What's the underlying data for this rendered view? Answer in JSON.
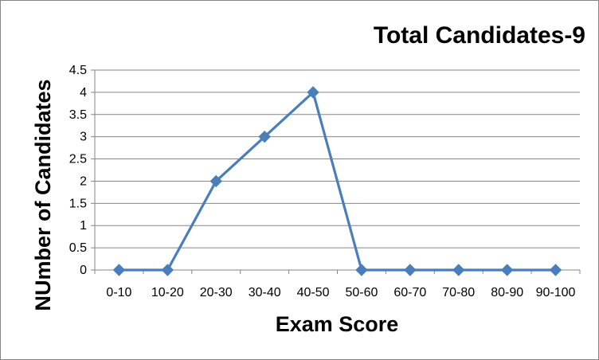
{
  "chart_data": {
    "type": "line",
    "title": "Total Candidates-9",
    "xlabel": "Exam Score",
    "ylabel": "NUmber of Candidates",
    "categories": [
      "0-10",
      "10-20",
      "20-30",
      "30-40",
      "40-50",
      "50-60",
      "60-70",
      "70-80",
      "80-90",
      "90-100"
    ],
    "series": [
      {
        "values": [
          0,
          0,
          2,
          3,
          4,
          0,
          0,
          0,
          0,
          0
        ]
      }
    ],
    "ylim": [
      0,
      4.5
    ],
    "yticks": [
      "0",
      "0.5",
      "1",
      "1.5",
      "2",
      "2.5",
      "3",
      "3.5",
      "4",
      "4.5"
    ],
    "grid": true,
    "legend": "none",
    "colors": {
      "series": "#4a7ebb",
      "gridline": "#868686",
      "axis": "#868686"
    }
  }
}
